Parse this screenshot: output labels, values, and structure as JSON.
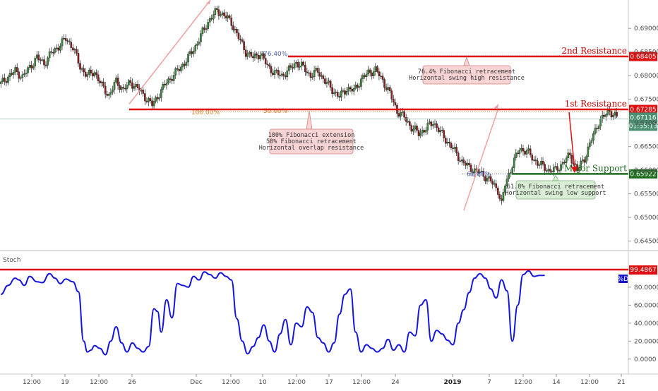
{
  "chart_data": [
    {
      "type": "candlestick",
      "ylim": [
        0.643,
        0.696
      ],
      "yticks": [
        "0.69000",
        "0.68500",
        "0.68000",
        "0.67500",
        "0.67000",
        "0.66500",
        "0.66000",
        "0.65500",
        "0.65000",
        "0.64500"
      ],
      "xticks": [
        "12:00",
        "19",
        "12:00",
        "26",
        "Dec",
        "12:00",
        "10",
        "12:00",
        "17",
        "12:00",
        "24",
        "2019",
        "7",
        "12:00",
        "14",
        "12:00",
        "21"
      ],
      "levels": {
        "second_resistance": {
          "label": "2nd Resistance",
          "value": "0.68405"
        },
        "first_resistance": {
          "label": "1st Resistance",
          "value": "0.67285"
        },
        "major_support": {
          "label": "Major Support",
          "value": "0.65922"
        },
        "last_price": {
          "value": "0.67116",
          "countdown": "01:35:13"
        }
      },
      "fib_labels": {
        "fib764": "76.40%",
        "fib100": "100.00%",
        "fib50": "50.00%",
        "fib618": "61.80%"
      },
      "annotations": {
        "second": [
          "76.4% Fibonacci retracement",
          "Horizontal swing high resistance"
        ],
        "first": [
          "100% Fibonacci extension",
          "50% Fibonacci retracement",
          "Horizontal overlap resistance"
        ],
        "support": [
          "61.8% Fibonacci retracement",
          "Horizontal swing low support"
        ]
      },
      "price_path": [
        [
          0,
          0.6783
        ],
        [
          4,
          0.6798
        ],
        [
          8,
          0.681
        ],
        [
          12,
          0.6797
        ],
        [
          16,
          0.6818
        ],
        [
          20,
          0.6838
        ],
        [
          24,
          0.6826
        ],
        [
          28,
          0.6848
        ],
        [
          32,
          0.6862
        ],
        [
          36,
          0.6878
        ],
        [
          40,
          0.686
        ],
        [
          44,
          0.6818
        ],
        [
          48,
          0.68
        ],
        [
          52,
          0.6808
        ],
        [
          56,
          0.6778
        ],
        [
          60,
          0.6758
        ],
        [
          64,
          0.6788
        ],
        [
          68,
          0.677
        ],
        [
          72,
          0.6786
        ],
        [
          76,
          0.6773
        ],
        [
          80,
          0.6755
        ],
        [
          84,
          0.6738
        ],
        [
          88,
          0.6762
        ],
        [
          92,
          0.6786
        ],
        [
          96,
          0.6802
        ],
        [
          100,
          0.6818
        ],
        [
          104,
          0.6838
        ],
        [
          108,
          0.6862
        ],
        [
          112,
          0.6892
        ],
        [
          116,
          0.692
        ],
        [
          120,
          0.6937
        ],
        [
          124,
          0.6928
        ],
        [
          128,
          0.6912
        ],
        [
          132,
          0.688
        ],
        [
          136,
          0.685
        ],
        [
          140,
          0.6838
        ],
        [
          144,
          0.6847
        ],
        [
          148,
          0.682
        ],
        [
          152,
          0.6806
        ],
        [
          156,
          0.68
        ],
        [
          160,
          0.6812
        ],
        [
          164,
          0.6828
        ],
        [
          168,
          0.6817
        ],
        [
          172,
          0.68
        ],
        [
          176,
          0.681
        ],
        [
          180,
          0.6788
        ],
        [
          184,
          0.677
        ],
        [
          188,
          0.6755
        ],
        [
          192,
          0.6773
        ],
        [
          196,
          0.6768
        ],
        [
          200,
          0.6792
        ],
        [
          204,
          0.6806
        ],
        [
          208,
          0.6812
        ],
        [
          212,
          0.679
        ],
        [
          216,
          0.6762
        ],
        [
          220,
          0.6725
        ],
        [
          224,
          0.6712
        ],
        [
          228,
          0.669
        ],
        [
          232,
          0.6678
        ],
        [
          236,
          0.6688
        ],
        [
          240,
          0.6702
        ],
        [
          244,
          0.668
        ],
        [
          248,
          0.666
        ],
        [
          252,
          0.664
        ],
        [
          256,
          0.6618
        ],
        [
          260,
          0.6606
        ],
        [
          264,
          0.6598
        ],
        [
          268,
          0.659
        ],
        [
          272,
          0.6576
        ],
        [
          276,
          0.6558
        ],
        [
          278,
          0.6528
        ],
        [
          280,
          0.657
        ],
        [
          284,
          0.6612
        ],
        [
          288,
          0.6645
        ],
        [
          292,
          0.664
        ],
        [
          296,
          0.6622
        ],
        [
          300,
          0.661
        ],
        [
          304,
          0.66
        ],
        [
          308,
          0.66
        ],
        [
          312,
          0.6615
        ],
        [
          316,
          0.6632
        ],
        [
          320,
          0.66
        ],
        [
          324,
          0.6625
        ],
        [
          328,
          0.6665
        ],
        [
          332,
          0.6702
        ],
        [
          336,
          0.6718
        ],
        [
          338,
          0.6726
        ],
        [
          340,
          0.6718
        ],
        [
          342,
          0.6711
        ]
      ]
    },
    {
      "type": "line",
      "title": "Stoch",
      "series_label": "%D",
      "ylim": [
        -15,
        105
      ],
      "yticks": [
        "80.0000",
        "60.0000",
        "40.0000",
        "20.0000",
        "0.0000"
      ],
      "overbought_value": "99.4867",
      "series": [
        {
          "name": "%D",
          "values": [
            [
              0,
              72
            ],
            [
              4,
              82
            ],
            [
              8,
              90
            ],
            [
              10,
              88
            ],
            [
              13,
              82
            ],
            [
              16,
              92
            ],
            [
              20,
              86
            ],
            [
              23,
              85
            ],
            [
              27,
              95
            ],
            [
              30,
              90
            ],
            [
              33,
              84
            ],
            [
              36,
              89
            ],
            [
              40,
              86
            ],
            [
              43,
              75
            ],
            [
              46,
              20
            ],
            [
              48,
              8
            ],
            [
              50,
              10
            ],
            [
              52,
              15
            ],
            [
              55,
              12
            ],
            [
              58,
              5
            ],
            [
              61,
              20
            ],
            [
              64,
              36
            ],
            [
              67,
              18
            ],
            [
              70,
              8
            ],
            [
              73,
              18
            ],
            [
              76,
              12
            ],
            [
              79,
              8
            ],
            [
              82,
              14
            ],
            [
              85,
              56
            ],
            [
              87,
              53
            ],
            [
              89,
              30
            ],
            [
              92,
              66
            ],
            [
              95,
              46
            ],
            [
              98,
              84
            ],
            [
              101,
              82
            ],
            [
              104,
              80
            ],
            [
              107,
              92
            ],
            [
              110,
              88
            ],
            [
              113,
              97
            ],
            [
              116,
              94
            ],
            [
              119,
              90
            ],
            [
              122,
              96
            ],
            [
              125,
              92
            ],
            [
              128,
              88
            ],
            [
              131,
              45
            ],
            [
              134,
              20
            ],
            [
              137,
              6
            ],
            [
              140,
              14
            ],
            [
              143,
              24
            ],
            [
              146,
              38
            ],
            [
              149,
              20
            ],
            [
              152,
              8
            ],
            [
              155,
              28
            ],
            [
              158,
              44
            ],
            [
              161,
              16
            ],
            [
              164,
              40
            ],
            [
              167,
              36
            ],
            [
              170,
              58
            ],
            [
              173,
              52
            ],
            [
              176,
              24
            ],
            [
              179,
              18
            ],
            [
              182,
              8
            ],
            [
              185,
              18
            ],
            [
              188,
              50
            ],
            [
              191,
              72
            ],
            [
              194,
              78
            ],
            [
              197,
              30
            ],
            [
              200,
              8
            ],
            [
              203,
              16
            ],
            [
              206,
              12
            ],
            [
              209,
              8
            ],
            [
              212,
              12
            ],
            [
              215,
              22
            ],
            [
              218,
              10
            ],
            [
              221,
              16
            ],
            [
              224,
              8
            ],
            [
              227,
              30
            ],
            [
              230,
              26
            ],
            [
              233,
              60
            ],
            [
              236,
              66
            ],
            [
              239,
              20
            ],
            [
              242,
              32
            ],
            [
              245,
              28
            ],
            [
              248,
              21
            ],
            [
              251,
              16
            ],
            [
              254,
              40
            ],
            [
              257,
              55
            ],
            [
              260,
              74
            ],
            [
              263,
              90
            ],
            [
              266,
              95
            ],
            [
              269,
              90
            ],
            [
              272,
              78
            ],
            [
              275,
              68
            ],
            [
              278,
              88
            ],
            [
              281,
              76
            ],
            [
              284,
              20
            ],
            [
              287,
              60
            ],
            [
              290,
              94
            ],
            [
              293,
              98
            ],
            [
              296,
              92
            ],
            [
              299,
              93
            ],
            [
              302,
              93
            ]
          ]
        }
      ]
    }
  ]
}
